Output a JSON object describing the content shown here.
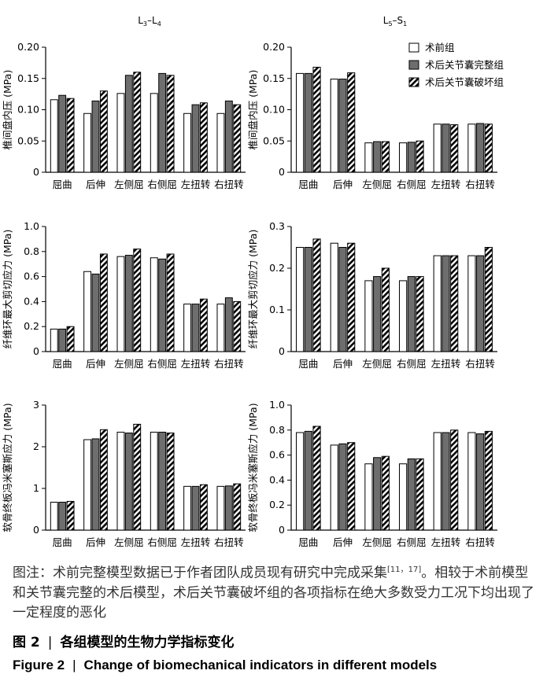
{
  "legend": {
    "items": [
      "术前组",
      "术后关节囊完整组",
      "术后关节囊破坏组"
    ]
  },
  "caption": {
    "note_prefix": "图注：术前完整模型数据已于作者团队成员现有研究中完成采集",
    "note_ref": "[11，17]",
    "note_suffix": "。相较于术前模型和关节囊完整的术后模型，术后关节囊破坏组的各项指标在绝大多数受力工况下均出现了一定程度的恶化",
    "figure_cn_label": "图 2",
    "figure_cn_title": "各组模型的生物力学指标变化",
    "figure_en_label": "Figure 2",
    "figure_en_title": "Change of biomechanical indicators in different models",
    "separator": "|"
  },
  "chart_data": [
    {
      "type": "bar",
      "column_title_main": "L",
      "column_title_sub1": "3",
      "column_title_mid": "–L",
      "column_title_sub2": "4",
      "ylabel": "椎间盘内压 (MPa)",
      "categories": [
        "屈曲",
        "后伸",
        "左侧屈",
        "右侧屈",
        "左扭转",
        "右扭转"
      ],
      "ylim": [
        0,
        0.2
      ],
      "yticks": [
        "0",
        "0.05",
        "0.10",
        "0.15",
        "0.20"
      ],
      "series": [
        {
          "name": "术前组",
          "values": [
            0.116,
            0.094,
            0.126,
            0.126,
            0.094,
            0.094
          ]
        },
        {
          "name": "术后关节囊完整组",
          "values": [
            0.123,
            0.114,
            0.155,
            0.158,
            0.108,
            0.114
          ]
        },
        {
          "name": "术后关节囊破坏组",
          "values": [
            0.118,
            0.13,
            0.16,
            0.155,
            0.111,
            0.108
          ]
        }
      ]
    },
    {
      "type": "bar",
      "column_title_main": "L",
      "column_title_sub1": "5",
      "column_title_mid": "–S",
      "column_title_sub2": "1",
      "ylabel": "椎间盘内压 (MPa)",
      "categories": [
        "屈曲",
        "后伸",
        "左侧屈",
        "右侧屈",
        "左扭转",
        "右扭转"
      ],
      "ylim": [
        0,
        0.2
      ],
      "yticks": [
        "0",
        "0.05",
        "0.10",
        "0.15",
        "0.20"
      ],
      "show_legend": true,
      "series": [
        {
          "name": "术前组",
          "values": [
            0.158,
            0.149,
            0.047,
            0.047,
            0.077,
            0.077
          ]
        },
        {
          "name": "术后关节囊完整组",
          "values": [
            0.158,
            0.149,
            0.049,
            0.048,
            0.077,
            0.078
          ]
        },
        {
          "name": "术后关节囊破坏组",
          "values": [
            0.168,
            0.159,
            0.049,
            0.05,
            0.076,
            0.077
          ]
        }
      ]
    },
    {
      "type": "bar",
      "ylabel": "纤维环最大剪切应力 (MPa)",
      "categories": [
        "屈曲",
        "后伸",
        "左侧屈",
        "右侧屈",
        "左扭转",
        "右扭转"
      ],
      "ylim": [
        0,
        1.0
      ],
      "yticks": [
        "0",
        "0.2",
        "0.4",
        "0.6",
        "0.8",
        "1.0"
      ],
      "series": [
        {
          "name": "术前组",
          "values": [
            0.18,
            0.64,
            0.76,
            0.75,
            0.38,
            0.38
          ]
        },
        {
          "name": "术后关节囊完整组",
          "values": [
            0.18,
            0.62,
            0.77,
            0.74,
            0.38,
            0.43
          ]
        },
        {
          "name": "术后关节囊破坏组",
          "values": [
            0.2,
            0.78,
            0.82,
            0.78,
            0.42,
            0.4
          ]
        }
      ]
    },
    {
      "type": "bar",
      "ylabel": "纤维环最大剪切应力 (MPa)",
      "categories": [
        "屈曲",
        "后伸",
        "左侧屈",
        "右侧屈",
        "左扭转",
        "右扭转"
      ],
      "ylim": [
        0,
        0.3
      ],
      "yticks": [
        "0",
        "0.1",
        "0.2",
        "0.3"
      ],
      "series": [
        {
          "name": "术前组",
          "values": [
            0.25,
            0.26,
            0.17,
            0.17,
            0.23,
            0.23
          ]
        },
        {
          "name": "术后关节囊完整组",
          "values": [
            0.25,
            0.25,
            0.18,
            0.18,
            0.23,
            0.23
          ]
        },
        {
          "name": "术后关节囊破坏组",
          "values": [
            0.27,
            0.26,
            0.2,
            0.18,
            0.23,
            0.25
          ]
        }
      ]
    },
    {
      "type": "bar",
      "ylabel": "软骨终板冯米塞斯应力 (MPa)",
      "categories": [
        "屈曲",
        "后伸",
        "左侧屈",
        "右侧屈",
        "左扭转",
        "右扭转"
      ],
      "ylim": [
        0,
        3
      ],
      "yticks": [
        "0",
        "1",
        "2",
        "3"
      ],
      "series": [
        {
          "name": "术前组",
          "values": [
            0.67,
            2.17,
            2.35,
            2.35,
            1.05,
            1.05
          ]
        },
        {
          "name": "术后关节囊完整组",
          "values": [
            0.67,
            2.19,
            2.33,
            2.35,
            1.05,
            1.06
          ]
        },
        {
          "name": "术后关节囊破坏组",
          "values": [
            0.69,
            2.41,
            2.54,
            2.33,
            1.09,
            1.11
          ]
        }
      ]
    },
    {
      "type": "bar",
      "ylabel": "软骨终板冯米塞斯应力 (MPa)",
      "categories": [
        "屈曲",
        "后伸",
        "左侧屈",
        "右侧屈",
        "左扭转",
        "右扭转"
      ],
      "ylim": [
        0,
        1.0
      ],
      "yticks": [
        "0",
        "0.2",
        "0.4",
        "0.6",
        "0.8",
        "1.0"
      ],
      "series": [
        {
          "name": "术前组",
          "values": [
            0.78,
            0.68,
            0.53,
            0.53,
            0.78,
            0.78
          ]
        },
        {
          "name": "术后关节囊完整组",
          "values": [
            0.79,
            0.69,
            0.58,
            0.57,
            0.78,
            0.77
          ]
        },
        {
          "name": "术后关节囊破坏组",
          "values": [
            0.83,
            0.7,
            0.59,
            0.57,
            0.8,
            0.79
          ]
        }
      ]
    }
  ]
}
